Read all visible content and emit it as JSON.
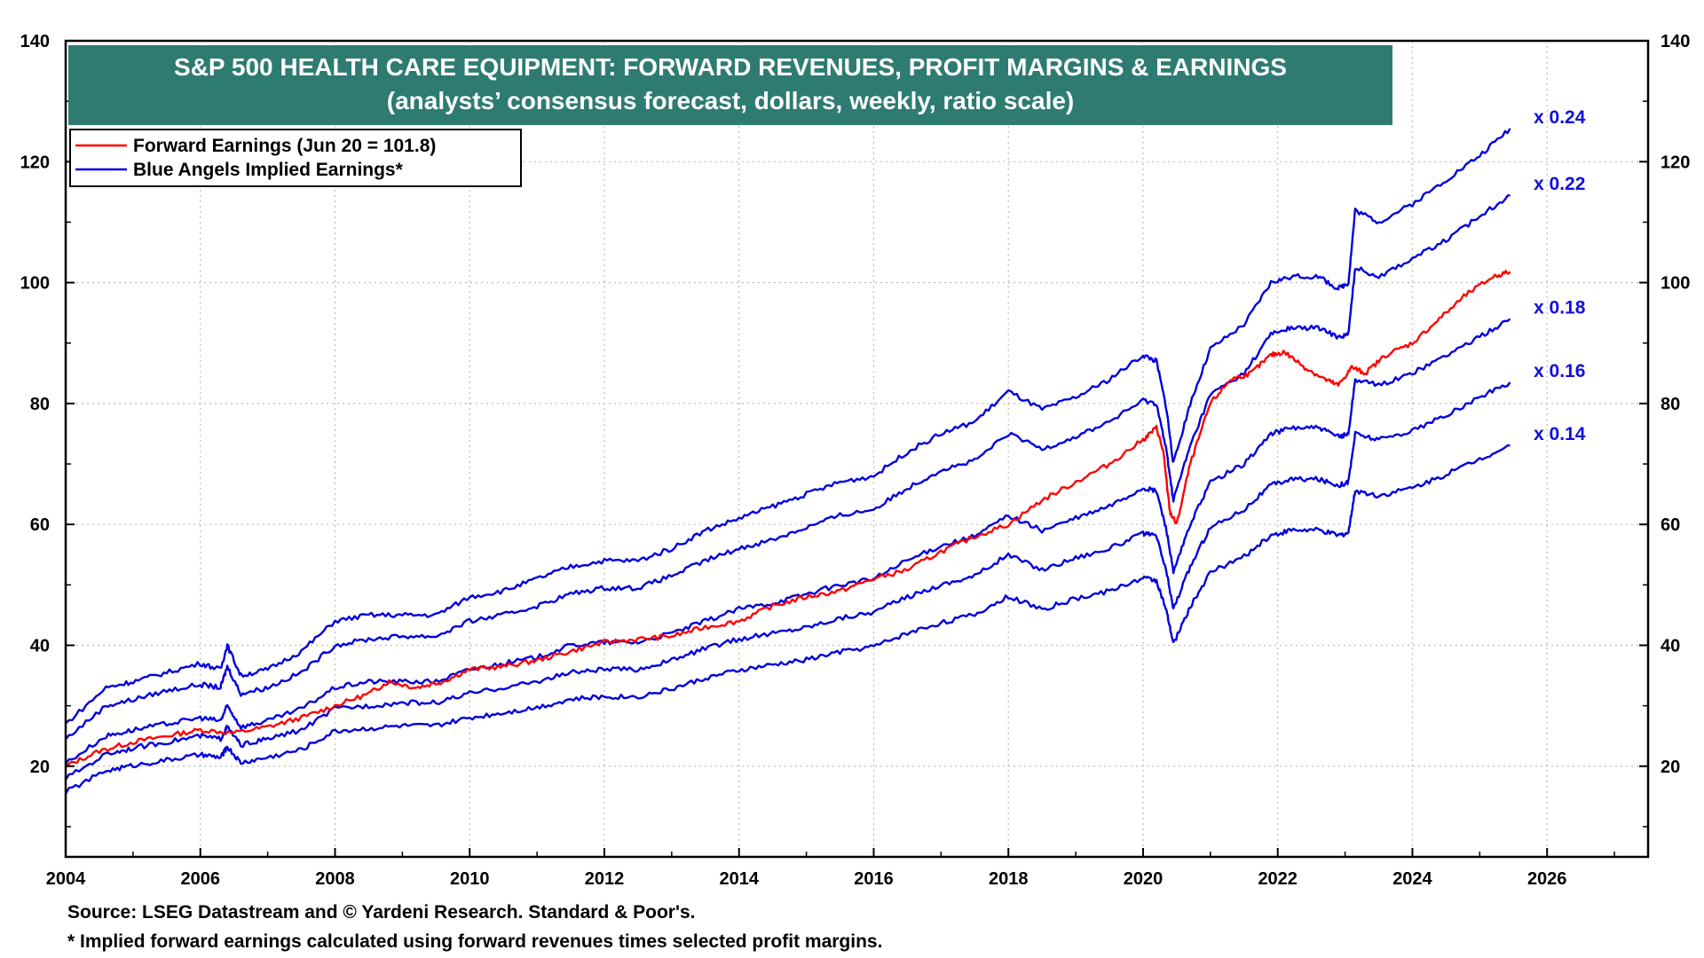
{
  "chart_data": {
    "type": "line",
    "title": "S&P 500 HEALTH CARE EQUIPMENT: FORWARD REVENUES, PROFIT MARGINS & EARNINGS",
    "subtitle": "(analysts’ consensus forecast, dollars, weekly, ratio scale)",
    "x_ticks": [
      "2004",
      "2006",
      "2008",
      "2010",
      "2012",
      "2014",
      "2016",
      "2018",
      "2020",
      "2022",
      "2024",
      "2026"
    ],
    "xlim": [
      2004,
      2027.5
    ],
    "y_ticks": [
      "20",
      "40",
      "60",
      "80",
      "100",
      "120",
      "140"
    ],
    "ylim": [
      5,
      140
    ],
    "legend_position": "top-left",
    "grid": true,
    "series": [
      {
        "name": "Forward Earnings (Jun 20 = 101.8)",
        "color": "#ff0000",
        "x": [
          2004.0,
          2004.5,
          2005.0,
          2005.5,
          2006.0,
          2006.5,
          2007.0,
          2007.5,
          2008.0,
          2008.5,
          2008.8,
          2009.2,
          2009.6,
          2010.0,
          2010.5,
          2011.0,
          2011.5,
          2012.0,
          2012.5,
          2013.0,
          2013.5,
          2014.0,
          2014.5,
          2015.0,
          2015.5,
          2016.0,
          2016.5,
          2017.0,
          2017.5,
          2018.0,
          2018.5,
          2019.0,
          2019.5,
          2020.0,
          2020.2,
          2020.3,
          2020.4,
          2020.5,
          2020.7,
          2021.0,
          2021.3,
          2021.6,
          2021.9,
          2022.1,
          2022.4,
          2022.7,
          2022.9,
          2023.1,
          2023.3,
          2023.6,
          2024.0,
          2024.4,
          2024.8,
          2025.2,
          2025.45
        ],
        "y": [
          20,
          22.5,
          24,
          25,
          26,
          25.5,
          26.5,
          28,
          30,
          32,
          34,
          33,
          34,
          36,
          36.5,
          37.5,
          39,
          40.5,
          41,
          41.5,
          43,
          44,
          46.5,
          48,
          49,
          51,
          52.5,
          55.5,
          58,
          60,
          64,
          67,
          70,
          74,
          76,
          72,
          62,
          60,
          70,
          80,
          84,
          85,
          88,
          88.5,
          86,
          84,
          83,
          86,
          85,
          88,
          90,
          94,
          98,
          101,
          101.8
        ]
      },
      {
        "name": "Blue Angels Implied Earnings*",
        "label": "x 0.24",
        "color": "#0000dd",
        "x": [
          2004.0,
          2004.6,
          2005.0,
          2005.5,
          2006.0,
          2006.3,
          2006.4,
          2006.6,
          2007.0,
          2007.5,
          2008.0,
          2008.5,
          2009.0,
          2009.5,
          2010.0,
          2010.5,
          2011.0,
          2011.5,
          2012.0,
          2012.5,
          2013.0,
          2013.5,
          2014.0,
          2014.5,
          2015.0,
          2015.5,
          2016.0,
          2016.5,
          2017.0,
          2017.5,
          2018.0,
          2018.5,
          2019.0,
          2019.5,
          2020.0,
          2020.2,
          2020.35,
          2020.45,
          2020.7,
          2021.0,
          2021.5,
          2021.9,
          2022.2,
          2022.6,
          2022.9,
          2023.05,
          2023.15,
          2023.5,
          2024.0,
          2024.5,
          2025.0,
          2025.45
        ],
        "y": [
          27,
          33,
          34,
          35.5,
          37,
          36,
          40,
          35,
          36,
          39,
          44,
          45,
          45,
          45,
          48,
          49,
          51,
          53,
          54,
          54,
          56,
          59,
          61,
          63,
          65,
          67,
          68,
          72,
          75,
          77,
          82,
          79,
          81,
          84,
          88,
          87,
          79,
          70,
          80,
          89,
          93,
          100,
          101,
          101,
          99,
          100,
          112,
          110,
          113,
          117,
          121,
          125.5
        ]
      },
      {
        "label": "x 0.22",
        "color": "#0000dd",
        "x": [
          2004.0,
          2004.6,
          2005.0,
          2005.5,
          2006.0,
          2006.3,
          2006.4,
          2006.6,
          2007.0,
          2007.5,
          2008.0,
          2008.5,
          2009.0,
          2009.5,
          2010.0,
          2010.5,
          2011.0,
          2011.5,
          2012.0,
          2012.5,
          2013.0,
          2013.5,
          2014.0,
          2014.5,
          2015.0,
          2015.5,
          2016.0,
          2016.5,
          2017.0,
          2017.5,
          2018.0,
          2018.5,
          2019.0,
          2019.5,
          2020.0,
          2020.2,
          2020.35,
          2020.45,
          2020.7,
          2021.0,
          2021.5,
          2021.9,
          2022.2,
          2022.6,
          2022.9,
          2023.05,
          2023.15,
          2023.5,
          2024.0,
          2024.5,
          2025.0,
          2025.45
        ],
        "y": [
          24.5,
          30,
          31,
          32.5,
          33.5,
          33,
          36.5,
          32,
          33,
          35.5,
          40,
          41,
          41.5,
          41.5,
          44,
          45,
          46.5,
          48.5,
          49.5,
          49.5,
          51.5,
          54,
          56,
          57.5,
          59.5,
          61.5,
          62.5,
          66,
          69,
          70.5,
          75,
          72.5,
          74.5,
          77,
          80.5,
          80,
          72,
          64,
          73,
          81.5,
          85,
          91.5,
          92.5,
          92.5,
          91,
          91.5,
          102.5,
          101,
          104,
          107,
          111,
          114.5
        ]
      },
      {
        "label": "x 0.18",
        "color": "#0000dd",
        "x": [
          2004.0,
          2004.6,
          2005.0,
          2005.5,
          2006.0,
          2006.3,
          2006.4,
          2006.6,
          2007.0,
          2007.5,
          2008.0,
          2008.5,
          2009.0,
          2009.5,
          2010.0,
          2010.5,
          2011.0,
          2011.5,
          2012.0,
          2012.5,
          2013.0,
          2013.5,
          2014.0,
          2014.5,
          2015.0,
          2015.5,
          2016.0,
          2016.5,
          2017.0,
          2017.5,
          2018.0,
          2018.5,
          2019.0,
          2019.5,
          2020.0,
          2020.2,
          2020.35,
          2020.45,
          2020.7,
          2021.0,
          2021.5,
          2021.9,
          2022.2,
          2022.6,
          2022.9,
          2023.05,
          2023.15,
          2023.5,
          2024.0,
          2024.5,
          2025.0,
          2025.45
        ],
        "y": [
          20.5,
          25,
          26,
          27,
          28,
          27.5,
          30,
          26.5,
          27.5,
          29.5,
          33,
          34,
          34,
          34,
          36,
          37,
          38,
          40,
          40.5,
          40.5,
          42,
          44,
          46,
          47,
          48.5,
          50,
          51,
          54,
          56.5,
          58,
          61.5,
          59,
          61,
          63,
          66,
          65.5,
          59,
          52,
          60,
          67,
          70,
          75,
          76,
          76,
          74.5,
          75,
          84,
          83,
          85,
          88,
          91,
          94
        ]
      },
      {
        "label": "x 0.16",
        "color": "#0000dd",
        "x": [
          2004.0,
          2004.6,
          2005.0,
          2005.5,
          2006.0,
          2006.3,
          2006.4,
          2006.6,
          2007.0,
          2007.5,
          2008.0,
          2008.5,
          2009.0,
          2009.5,
          2010.0,
          2010.5,
          2011.0,
          2011.5,
          2012.0,
          2012.5,
          2013.0,
          2013.5,
          2014.0,
          2014.5,
          2015.0,
          2015.5,
          2016.0,
          2016.5,
          2017.0,
          2017.5,
          2018.0,
          2018.5,
          2019.0,
          2019.5,
          2020.0,
          2020.2,
          2020.35,
          2020.45,
          2020.7,
          2021.0,
          2021.5,
          2021.9,
          2022.2,
          2022.6,
          2022.9,
          2023.05,
          2023.15,
          2023.5,
          2024.0,
          2024.5,
          2025.0,
          2025.45
        ],
        "y": [
          18,
          22,
          23,
          24,
          25,
          24.5,
          26.5,
          23.5,
          24.5,
          26,
          29.5,
          30,
          30.5,
          30.5,
          32,
          33,
          34,
          35.5,
          36,
          36,
          37.5,
          39.5,
          41,
          42,
          43,
          44.5,
          45.5,
          48,
          50,
          51.5,
          55,
          52.5,
          54.5,
          56,
          58.5,
          58,
          52,
          46,
          53,
          59.5,
          62.5,
          66.5,
          67.5,
          67.5,
          66.5,
          67,
          75,
          74,
          75.5,
          78,
          81,
          83.5
        ]
      },
      {
        "label": "x 0.14",
        "color": "#0000dd",
        "x": [],
        "y": []
      }
    ]
  },
  "legend": {
    "items": [
      {
        "label": "Forward Earnings (Jun 20 = 101.8)",
        "color": "#ff0000"
      },
      {
        "label": "Blue Angels Implied Earnings*",
        "color": "#0000dd"
      }
    ]
  },
  "footnotes": {
    "source": "Source: LSEG Datastream and © Yardeni Research. Standard & Poor's.",
    "note": "* Implied forward earnings calculated using forward revenues times selected profit margins."
  }
}
